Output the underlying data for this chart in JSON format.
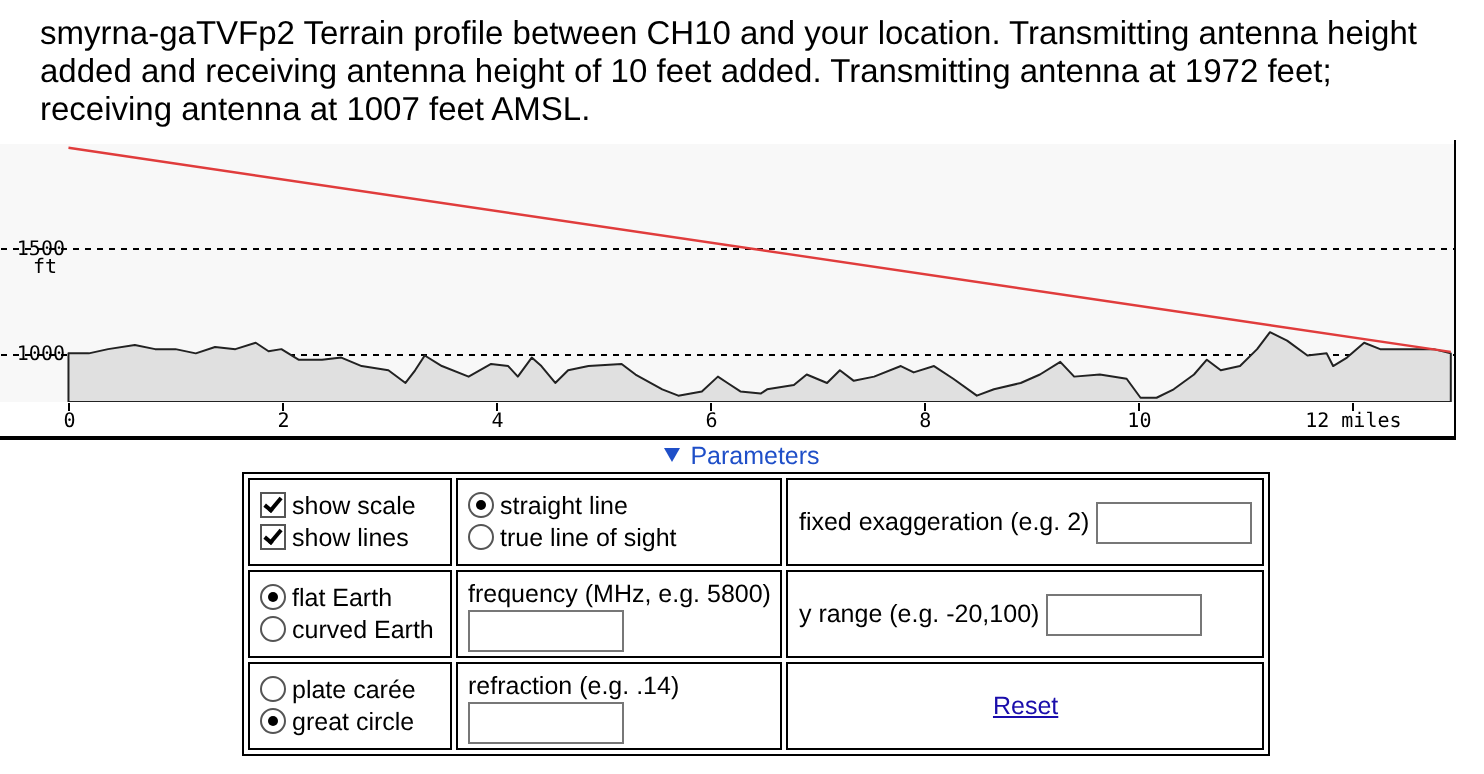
{
  "chart_data": [
    {
      "type": "area",
      "title": "smyrna-gaTVFp2  Terrain profile between CH10 and your location. Transmitting antenna height added and receiving antenna height of 10 feet added. Transmitting antenna at 1972 feet; receiving antenna at 1007 feet AMSL.",
      "ylabel": "ft",
      "xlim": [
        -0.64,
        12.95
      ],
      "ylim": [
        770,
        1990
      ],
      "xticks": [
        0,
        2,
        4,
        6,
        8,
        10,
        {
          "value": 12,
          "label": "12 miles"
        }
      ],
      "yticks": [
        1000,
        1500
      ],
      "grid": "y",
      "series": [
        {
          "type": "area",
          "color": "#e0e0e0",
          "x": [
            0,
            0.19,
            0.37,
            0.62,
            0.81,
            1.0,
            1.19,
            1.37,
            1.56,
            1.75,
            1.87,
            1.99,
            2.15,
            2.37,
            2.55,
            2.74,
            2.99,
            3.15,
            3.24,
            3.33,
            3.49,
            3.74,
            3.95,
            4.11,
            4.2,
            4.33,
            4.42,
            4.55,
            4.67,
            4.86,
            5.17,
            5.3,
            5.55,
            5.7,
            5.92,
            6.07,
            6.16,
            6.28,
            6.47,
            6.53,
            6.78,
            6.9,
            7.09,
            7.21,
            7.34,
            7.53,
            7.78,
            7.9,
            8.09,
            8.27,
            8.49,
            8.65,
            8.9,
            9.08,
            9.27,
            9.4,
            9.64,
            9.89,
            10.02,
            10.17,
            10.33,
            10.52,
            10.64,
            10.77,
            10.95,
            11.11,
            11.23,
            11.39,
            11.58,
            11.76,
            11.82,
            11.95,
            12.11,
            12.26,
            12.51,
            12.76,
            12.92
          ],
          "values": [
            1000,
            1000,
            1020,
            1040,
            1020,
            1020,
            1000,
            1030,
            1020,
            1050,
            1010,
            1020,
            970,
            970,
            980,
            940,
            920,
            860,
            920,
            990,
            940,
            890,
            950,
            940,
            890,
            980,
            940,
            860,
            920,
            940,
            950,
            900,
            830,
            800,
            820,
            890,
            860,
            820,
            810,
            830,
            850,
            900,
            860,
            920,
            870,
            890,
            940,
            910,
            940,
            880,
            800,
            830,
            860,
            900,
            960,
            890,
            900,
            880,
            790,
            790,
            830,
            900,
            970,
            920,
            940,
            1020,
            1100,
            1060,
            990,
            1000,
            940,
            980,
            1050,
            1020,
            1020,
            1020,
            1000
          ]
        },
        {
          "type": "line",
          "color": "#e03c3c",
          "x": [
            0,
            12.92
          ],
          "values": [
            1972,
            1007
          ]
        }
      ]
    },
    {
      "type": "other",
      "annotations": [
        "Parameters",
        "show scale",
        "show lines",
        "straight line",
        "true line of sight",
        "fixed exaggeration (e.g. 2)",
        "flat Earth",
        "curved Earth",
        "frequency (MHz, e.g. 5800)",
        "y range (e.g. -20,100)",
        "plate carée",
        "great circle",
        "refraction (e.g. .14)",
        "Reset"
      ]
    }
  ]
}
